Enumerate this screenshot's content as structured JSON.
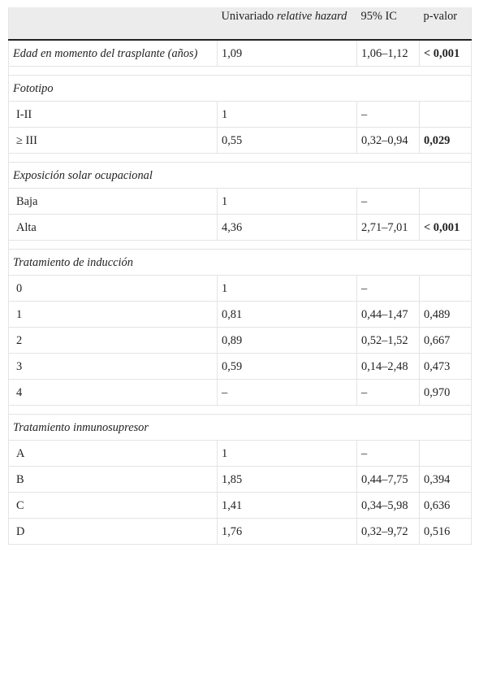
{
  "header": {
    "col2_prefix": "Univariado ",
    "col2_italic": "relative hazard",
    "col3": "95% IC",
    "col4": "p-valor"
  },
  "edad": {
    "label": "Edad en momento del trasplante (años)",
    "value": "1,09",
    "ic": "1,06–1,12",
    "p": "< 0,001"
  },
  "sections": {
    "fototipo": {
      "title": "Fototipo",
      "rows": [
        {
          "label": "I-II",
          "value": "1",
          "ic": "–",
          "p": ""
        },
        {
          "label": "≥ III",
          "value": "0,55",
          "ic": "0,32–0,94",
          "p": "0,029"
        }
      ]
    },
    "exposicion": {
      "title": "Exposición solar ocupacional",
      "rows": [
        {
          "label": "Baja",
          "value": "1",
          "ic": "–",
          "p": ""
        },
        {
          "label": "Alta",
          "value": "4,36",
          "ic": "2,71–7,01",
          "p": "< 0,001"
        }
      ]
    },
    "induccion": {
      "title": "Tratamiento de inducción",
      "rows": [
        {
          "label": "0",
          "value": "1",
          "ic": "–",
          "p": ""
        },
        {
          "label": "1",
          "value": "0,81",
          "ic": "0,44–1,47",
          "p": "0,489"
        },
        {
          "label": "2",
          "value": "0,89",
          "ic": "0,52–1,52",
          "p": "0,667"
        },
        {
          "label": "3",
          "value": "0,59",
          "ic": "0,14–2,48",
          "p": "0,473"
        },
        {
          "label": "4",
          "value": "–",
          "ic": "–",
          "p": "0,970"
        }
      ]
    },
    "inmuno": {
      "title": "Tratamiento inmunosupresor",
      "rows": [
        {
          "label": "A",
          "value": "1",
          "ic": "–",
          "p": ""
        },
        {
          "label": "B",
          "value": "1,85",
          "ic": "0,44–7,75",
          "p": "0,394"
        },
        {
          "label": "C",
          "value": "1,41",
          "ic": "0,34–5,98",
          "p": "0,636"
        },
        {
          "label": "D",
          "value": "1,76",
          "ic": "0,32–9,72",
          "p": "0,516"
        }
      ]
    }
  }
}
